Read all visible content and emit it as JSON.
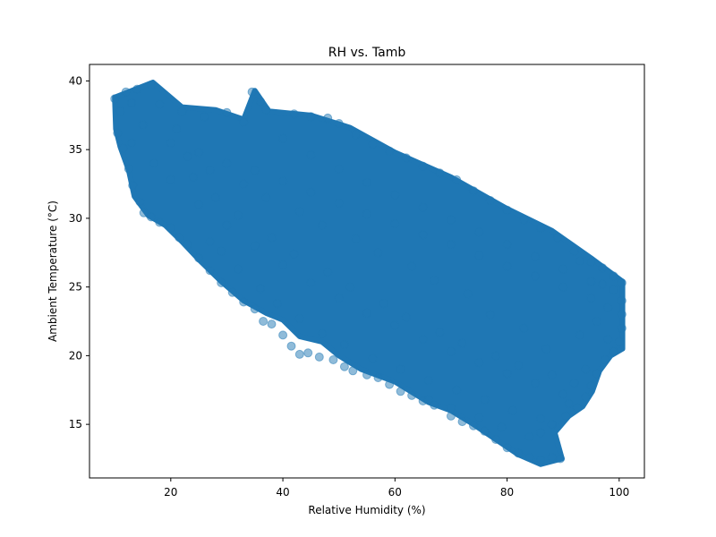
{
  "chart_data": {
    "type": "scatter",
    "title": "RH vs. Tamb",
    "xlabel": "Relative Humidity (%)",
    "ylabel": "Ambient Temperature (°C)",
    "xlim": [
      5.5,
      104.5
    ],
    "ylim": [
      11.1,
      41.2
    ],
    "xticks": [
      20,
      40,
      60,
      80,
      100
    ],
    "yticks": [
      15,
      20,
      25,
      30,
      35,
      40
    ],
    "grid": false,
    "legend": "none",
    "marker_color": "#1f77b4",
    "marker_alpha": 0.5,
    "points": [
      [
        10,
        38.7
      ],
      [
        12,
        39.2
      ],
      [
        14,
        39.4
      ],
      [
        16.5,
        39.7
      ],
      [
        11,
        37.8
      ],
      [
        13,
        38.4
      ],
      [
        10.5,
        36.2
      ],
      [
        11.5,
        35.1
      ],
      [
        12.5,
        33.6
      ],
      [
        13.2,
        32.4
      ],
      [
        14.5,
        31.2
      ],
      [
        15.2,
        30.4
      ],
      [
        16.5,
        30.1
      ],
      [
        18,
        29.7
      ],
      [
        20,
        29.3
      ],
      [
        21.5,
        28.6
      ],
      [
        23,
        28.1
      ],
      [
        25,
        27.1
      ],
      [
        27,
        26.2
      ],
      [
        29,
        25.3
      ],
      [
        31,
        24.6
      ],
      [
        33,
        23.9
      ],
      [
        35,
        23.4
      ],
      [
        36.5,
        22.5
      ],
      [
        38,
        22.3
      ],
      [
        40,
        21.5
      ],
      [
        41.5,
        20.7
      ],
      [
        43,
        20.1
      ],
      [
        44.5,
        20.2
      ],
      [
        46.5,
        19.9
      ],
      [
        49,
        19.7
      ],
      [
        51,
        19.2
      ],
      [
        52.5,
        18.9
      ],
      [
        55,
        18.6
      ],
      [
        57,
        18.4
      ],
      [
        59,
        17.9
      ],
      [
        61,
        17.4
      ],
      [
        63,
        17.1
      ],
      [
        65,
        16.7
      ],
      [
        67,
        16.4
      ],
      [
        70,
        15.6
      ],
      [
        72,
        15.2
      ],
      [
        74,
        14.9
      ],
      [
        76,
        14.5
      ],
      [
        78,
        13.9
      ],
      [
        80,
        13.3
      ],
      [
        82,
        12.9
      ],
      [
        84,
        12.6
      ],
      [
        86,
        12.4
      ],
      [
        88,
        12.6
      ],
      [
        89.5,
        12.5
      ],
      [
        34.5,
        39.2
      ],
      [
        36,
        38.5
      ],
      [
        37,
        37.9
      ],
      [
        42,
        37.6
      ],
      [
        45,
        37.4
      ],
      [
        48,
        37.3
      ],
      [
        50,
        36.9
      ],
      [
        53,
        36.1
      ],
      [
        56,
        35.4
      ],
      [
        59,
        34.9
      ],
      [
        62,
        34.4
      ],
      [
        65,
        33.8
      ],
      [
        68,
        33.3
      ],
      [
        71,
        32.8
      ],
      [
        74,
        32.0
      ],
      [
        77,
        31.3
      ],
      [
        80,
        30.6
      ],
      [
        83,
        29.9
      ],
      [
        86,
        29.3
      ],
      [
        89,
        28.6
      ],
      [
        92,
        27.6
      ],
      [
        95,
        26.8
      ],
      [
        97,
        26.4
      ],
      [
        99,
        25.8
      ],
      [
        100.5,
        25.3
      ],
      [
        100.5,
        24.0
      ],
      [
        100.5,
        23.0
      ],
      [
        100.5,
        22.0
      ],
      [
        100,
        21.0
      ],
      [
        99,
        20.3
      ],
      [
        97.5,
        19.7
      ],
      [
        96,
        18.7
      ],
      [
        95,
        17.8
      ],
      [
        94,
        17.0
      ],
      [
        92.5,
        16.2
      ],
      [
        90.5,
        15.6
      ],
      [
        88,
        15.0
      ],
      [
        86,
        14.4
      ],
      [
        84,
        14.1
      ],
      [
        79,
        14.8
      ],
      [
        75,
        15.5
      ],
      [
        70,
        16.2
      ],
      [
        66,
        16.8
      ],
      [
        18,
        38.3
      ],
      [
        22,
        37.8
      ],
      [
        26,
        37.4
      ],
      [
        30,
        37.7
      ],
      [
        33,
        37.0
      ],
      [
        20,
        35.5
      ],
      [
        25,
        34.8
      ],
      [
        30,
        34.0
      ],
      [
        35,
        33.5
      ],
      [
        40,
        32.7
      ],
      [
        45,
        31.9
      ],
      [
        50,
        31.1
      ],
      [
        55,
        30.3
      ],
      [
        60,
        29.6
      ],
      [
        65,
        28.8
      ],
      [
        70,
        28.1
      ],
      [
        75,
        27.3
      ],
      [
        80,
        26.5
      ],
      [
        85,
        25.8
      ],
      [
        90,
        25.0
      ],
      [
        95,
        24.2
      ],
      [
        15,
        36.8
      ],
      [
        20,
        32.8
      ],
      [
        25,
        31.0
      ],
      [
        30,
        29.5
      ],
      [
        35,
        28.0
      ],
      [
        40,
        26.6
      ],
      [
        45,
        25.3
      ],
      [
        50,
        24.2
      ],
      [
        55,
        23.1
      ],
      [
        60,
        22.2
      ],
      [
        65,
        21.2
      ],
      [
        70,
        20.3
      ],
      [
        75,
        19.5
      ],
      [
        80,
        18.7
      ],
      [
        85,
        18.0
      ],
      [
        90,
        17.2
      ],
      [
        40,
        35.8
      ],
      [
        45,
        34.6
      ],
      [
        50,
        33.6
      ],
      [
        55,
        32.6
      ],
      [
        60,
        31.7
      ],
      [
        65,
        30.8
      ],
      [
        70,
        29.9
      ],
      [
        75,
        29.0
      ],
      [
        80,
        28.1
      ],
      [
        85,
        27.2
      ],
      [
        90,
        26.3
      ],
      [
        95,
        25.4
      ],
      [
        28,
        31.5
      ],
      [
        32,
        30.2
      ],
      [
        38,
        28.6
      ],
      [
        42,
        27.4
      ],
      [
        48,
        26.1
      ],
      [
        52,
        25.0
      ],
      [
        58,
        23.8
      ],
      [
        62,
        22.8
      ],
      [
        68,
        21.7
      ],
      [
        72,
        20.9
      ],
      [
        78,
        20.0
      ],
      [
        82,
        19.3
      ],
      [
        88,
        18.6
      ],
      [
        92,
        18.0
      ],
      [
        96,
        22.5
      ],
      [
        98,
        23.5
      ],
      [
        93,
        21.5
      ],
      [
        87,
        20.5
      ],
      [
        83,
        22.0
      ],
      [
        77,
        23.0
      ],
      [
        73,
        24.5
      ],
      [
        67,
        25.5
      ],
      [
        63,
        26.5
      ],
      [
        57,
        27.5
      ],
      [
        53,
        28.5
      ],
      [
        47,
        29.5
      ],
      [
        43,
        30.5
      ],
      [
        37,
        31.5
      ],
      [
        33,
        32.5
      ],
      [
        27,
        33.5
      ],
      [
        23,
        34.5
      ],
      [
        17,
        34.0
      ],
      [
        13,
        35.5
      ],
      [
        21,
        36.5
      ],
      [
        24,
        33.0
      ],
      [
        29,
        27.6
      ],
      [
        32,
        26.3
      ],
      [
        27,
        28.3
      ],
      [
        36,
        24.9
      ],
      [
        39,
        23.8
      ],
      [
        43,
        22.7
      ],
      [
        47,
        21.6
      ],
      [
        51,
        20.8
      ],
      [
        56,
        19.8
      ],
      [
        61,
        19.0
      ],
      [
        66,
        18.2
      ],
      [
        71,
        17.5
      ],
      [
        76,
        16.8
      ],
      [
        81,
        16.0
      ],
      [
        86,
        15.4
      ],
      [
        91,
        16.5
      ],
      [
        94,
        19.0
      ],
      [
        98,
        21.2
      ],
      [
        99,
        24.8
      ],
      [
        97,
        25.2
      ],
      [
        93,
        26.9
      ]
    ]
  }
}
